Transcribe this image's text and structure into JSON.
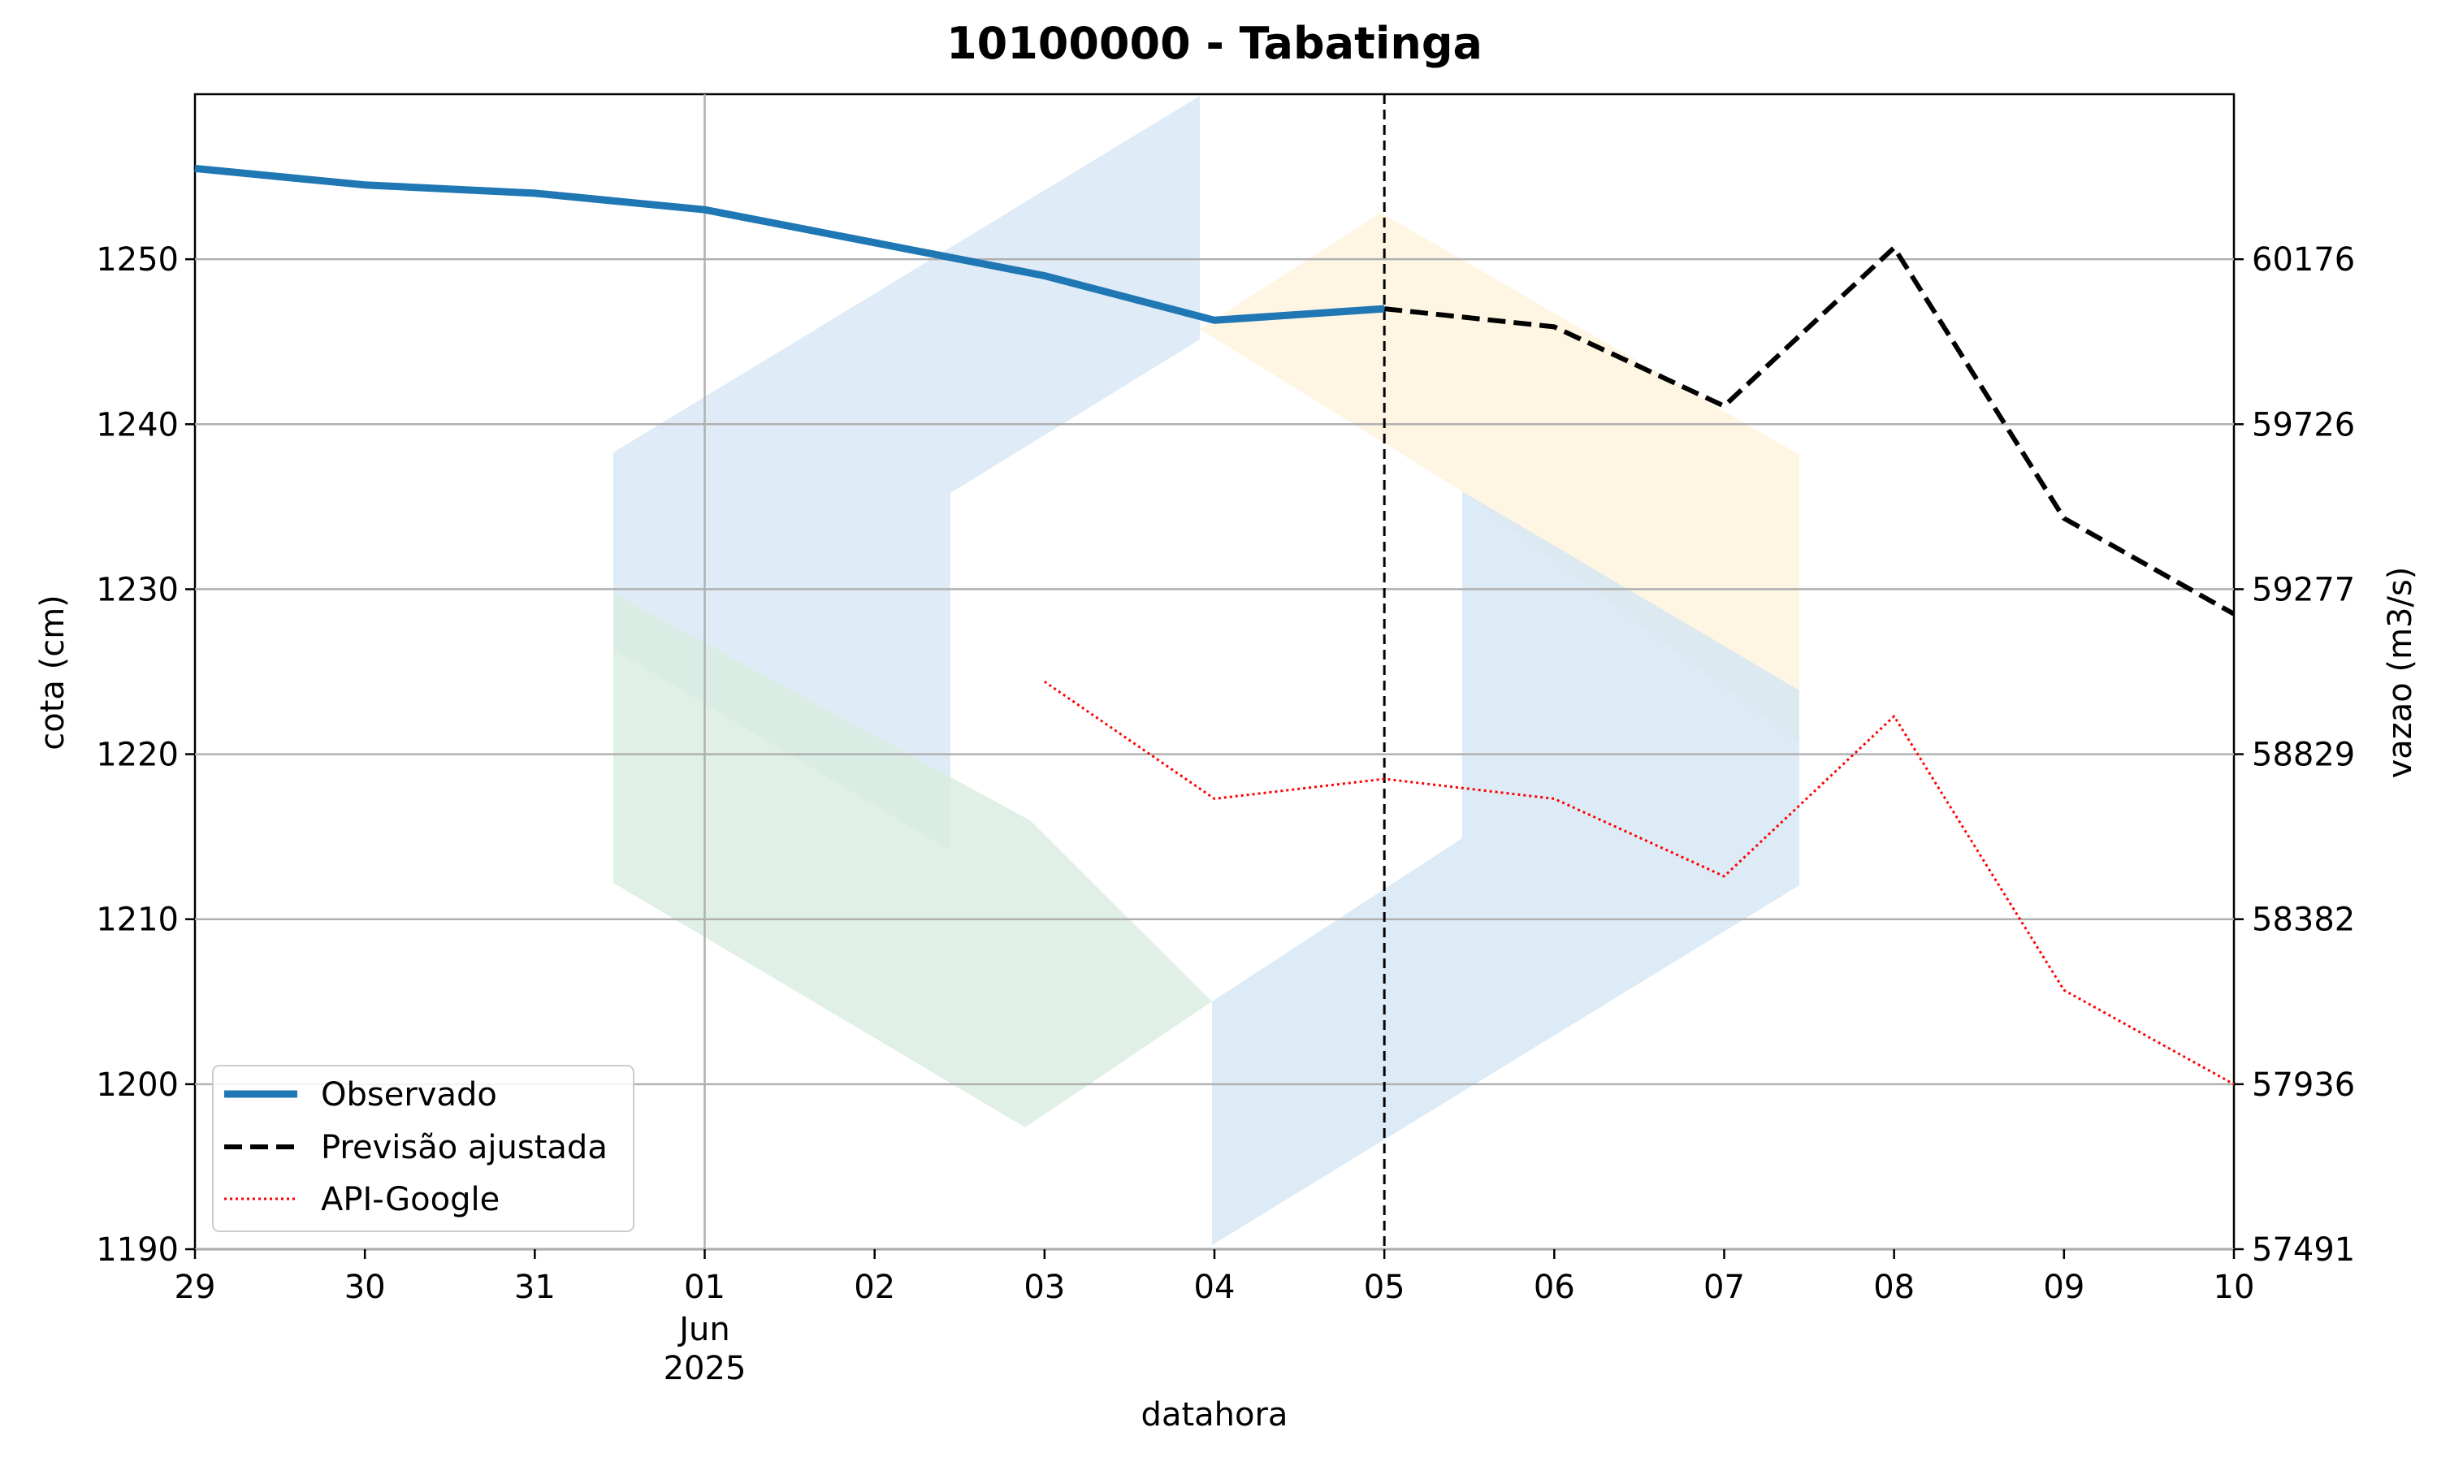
{
  "chart_data": {
    "type": "line",
    "title": "10100000 - Tabatinga",
    "xlabel": "datahora",
    "ylabel": "cota (cm)",
    "ylabel_right": "vazao (m3/s)",
    "x_ticks": [
      "29",
      "30",
      "31",
      "01",
      "02",
      "03",
      "04",
      "05",
      "06",
      "07",
      "08",
      "09",
      "10"
    ],
    "x_tick_sub": [
      "Jun",
      "2025"
    ],
    "x_range": [
      "2025-05-29",
      "2025-06-10"
    ],
    "ylim": [
      1190,
      1260
    ],
    "y_ticks": [
      1190,
      1200,
      1210,
      1220,
      1230,
      1240,
      1250
    ],
    "y_right_ticks": [
      "57491",
      "57936",
      "58382",
      "58829",
      "59277",
      "59726",
      "60176"
    ],
    "grid": true,
    "legend_position": "lower-left",
    "forecast_marker_date": "2025-06-05",
    "series": [
      {
        "name": "Observado",
        "color": "#1f77b4",
        "style": "solid",
        "x": [
          "2025-05-29",
          "2025-05-30",
          "2025-05-31",
          "2025-06-01",
          "2025-06-02",
          "2025-06-03",
          "2025-06-04",
          "2025-06-05"
        ],
        "values": [
          1255.5,
          1254.5,
          1254.0,
          1253.0,
          1251.0,
          1249.0,
          1246.3,
          1247.0
        ]
      },
      {
        "name": "Previsão ajustada",
        "color": "#000000",
        "style": "dashed",
        "x": [
          "2025-06-05",
          "2025-06-06",
          "2025-06-07",
          "2025-06-08",
          "2025-06-09",
          "2025-06-10"
        ],
        "values": [
          1247.0,
          1245.9,
          1241.1,
          1250.7,
          1234.3,
          1228.5
        ]
      },
      {
        "name": "API-Google",
        "color": "#ff0000",
        "style": "dotted",
        "x": [
          "2025-06-03",
          "2025-06-04",
          "2025-06-05",
          "2025-06-06",
          "2025-06-07",
          "2025-06-08",
          "2025-06-09",
          "2025-06-10"
        ],
        "values": [
          1224.4,
          1217.3,
          1218.5,
          1217.3,
          1212.6,
          1222.3,
          1205.7,
          1200.0
        ]
      }
    ]
  }
}
